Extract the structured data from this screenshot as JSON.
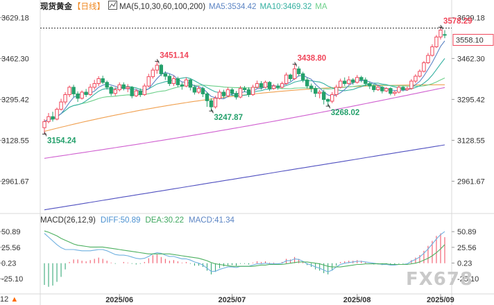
{
  "header": {
    "instrument": "现货黄金",
    "period": "【日线】",
    "indicator_label": "MA(5,10,30,60,100,200)",
    "ma5": "MA5:3534.42",
    "ma10": "MA10:3469.32",
    "ma_more": "MA"
  },
  "macd_header": {
    "label": "MACD(26,12,9)",
    "diff": "DIFF:50.89",
    "dea": "DEA:30.22",
    "macd": "MACD:41.34"
  },
  "watermark": "FX678",
  "corner": {
    "prefix": "12",
    "arrow": "▲"
  },
  "colors": {
    "up": "#f0465a",
    "down": "#24a06b",
    "ma5": "#5b84c4",
    "ma10": "#33b0a0",
    "ma30": "#6dd08a",
    "ma60": "#f0a050",
    "ma100": "#d060d0",
    "ma200": "#5050c0",
    "diff_line": "#6fb0e0",
    "dea_line": "#4cb060",
    "current_price_bg": "#f0465a"
  },
  "chart_data": {
    "type": "candlestick",
    "price_axis": {
      "ticks": [
        "3629.18",
        "3462.30",
        "3295.42",
        "3128.55",
        "2961.67"
      ],
      "range": [
        2830,
        3650
      ]
    },
    "current_price": "3558.10",
    "x_labels": [
      "2025/06",
      "2025/07",
      "2025/08",
      "2025/09"
    ],
    "annotations": [
      {
        "text": "3578.29",
        "type": "high"
      },
      {
        "text": "3451.14",
        "type": "high"
      },
      {
        "text": "3438.80",
        "type": "high"
      },
      {
        "text": "3247.87",
        "type": "low"
      },
      {
        "text": "3268.02",
        "type": "low"
      },
      {
        "text": "3154.24",
        "type": "low"
      }
    ],
    "macd_axis": {
      "ticks": [
        "50.89",
        "25.56",
        "0.23",
        "-25.10"
      ]
    },
    "candles": [
      [
        3180,
        3205,
        3154,
        3215
      ],
      [
        3205,
        3225,
        3198,
        3240
      ],
      [
        3225,
        3215,
        3205,
        3245
      ],
      [
        3215,
        3255,
        3210,
        3262
      ],
      [
        3255,
        3285,
        3250,
        3298
      ],
      [
        3285,
        3315,
        3275,
        3325
      ],
      [
        3315,
        3345,
        3305,
        3352
      ],
      [
        3345,
        3318,
        3305,
        3355
      ],
      [
        3318,
        3300,
        3285,
        3328
      ],
      [
        3300,
        3325,
        3295,
        3332
      ],
      [
        3325,
        3315,
        3305,
        3338
      ],
      [
        3315,
        3345,
        3310,
        3358
      ],
      [
        3345,
        3360,
        3335,
        3375
      ],
      [
        3360,
        3380,
        3350,
        3390
      ],
      [
        3380,
        3365,
        3358,
        3392
      ],
      [
        3365,
        3345,
        3335,
        3372
      ],
      [
        3345,
        3320,
        3310,
        3350
      ],
      [
        3320,
        3335,
        3310,
        3345
      ],
      [
        3335,
        3355,
        3328,
        3365
      ],
      [
        3355,
        3340,
        3332,
        3365
      ],
      [
        3340,
        3345,
        3325,
        3358
      ],
      [
        3345,
        3310,
        3300,
        3350
      ],
      [
        3310,
        3330,
        3305,
        3338
      ],
      [
        3330,
        3315,
        3305,
        3340
      ],
      [
        3315,
        3350,
        3310,
        3360
      ],
      [
        3350,
        3388,
        3345,
        3400
      ],
      [
        3388,
        3415,
        3380,
        3425
      ],
      [
        3415,
        3435,
        3400,
        3451
      ],
      [
        3435,
        3400,
        3390,
        3440
      ],
      [
        3400,
        3390,
        3375,
        3410
      ],
      [
        3390,
        3360,
        3350,
        3400
      ],
      [
        3360,
        3380,
        3350,
        3392
      ],
      [
        3380,
        3355,
        3345,
        3388
      ],
      [
        3355,
        3350,
        3335,
        3365
      ],
      [
        3350,
        3375,
        3345,
        3385
      ],
      [
        3375,
        3345,
        3332,
        3380
      ],
      [
        3345,
        3325,
        3315,
        3355
      ],
      [
        3325,
        3340,
        3318,
        3350
      ],
      [
        3340,
        3318,
        3305,
        3348
      ],
      [
        3318,
        3290,
        3265,
        3325
      ],
      [
        3290,
        3265,
        3248,
        3300
      ],
      [
        3265,
        3300,
        3258,
        3310
      ],
      [
        3300,
        3325,
        3295,
        3335
      ],
      [
        3325,
        3310,
        3300,
        3335
      ],
      [
        3310,
        3335,
        3305,
        3345
      ],
      [
        3335,
        3320,
        3310,
        3342
      ],
      [
        3320,
        3305,
        3295,
        3330
      ],
      [
        3305,
        3340,
        3300,
        3350
      ],
      [
        3340,
        3335,
        3325,
        3350
      ],
      [
        3335,
        3315,
        3305,
        3345
      ],
      [
        3315,
        3345,
        3310,
        3355
      ],
      [
        3345,
        3360,
        3340,
        3372
      ],
      [
        3360,
        3345,
        3335,
        3370
      ],
      [
        3345,
        3365,
        3340,
        3372
      ],
      [
        3365,
        3340,
        3330,
        3370
      ],
      [
        3340,
        3350,
        3335,
        3358
      ],
      [
        3350,
        3345,
        3335,
        3360
      ],
      [
        3345,
        3360,
        3340,
        3368
      ],
      [
        3360,
        3395,
        3355,
        3405
      ],
      [
        3395,
        3380,
        3370,
        3400
      ],
      [
        3380,
        3420,
        3375,
        3439
      ],
      [
        3420,
        3400,
        3390,
        3430
      ],
      [
        3400,
        3375,
        3365,
        3408
      ],
      [
        3375,
        3350,
        3340,
        3385
      ],
      [
        3350,
        3340,
        3325,
        3360
      ],
      [
        3340,
        3320,
        3305,
        3350
      ],
      [
        3320,
        3325,
        3300,
        3335
      ],
      [
        3325,
        3295,
        3275,
        3335
      ],
      [
        3295,
        3288,
        3268,
        3300
      ],
      [
        3288,
        3315,
        3280,
        3325
      ],
      [
        3315,
        3345,
        3305,
        3355
      ],
      [
        3345,
        3370,
        3340,
        3380
      ],
      [
        3370,
        3360,
        3350,
        3385
      ],
      [
        3360,
        3375,
        3355,
        3390
      ],
      [
        3375,
        3365,
        3355,
        3382
      ],
      [
        3365,
        3385,
        3360,
        3395
      ],
      [
        3385,
        3375,
        3365,
        3392
      ],
      [
        3375,
        3360,
        3350,
        3385
      ],
      [
        3360,
        3350,
        3338,
        3368
      ],
      [
        3350,
        3335,
        3325,
        3358
      ],
      [
        3335,
        3345,
        3330,
        3352
      ],
      [
        3345,
        3330,
        3320,
        3350
      ],
      [
        3330,
        3340,
        3325,
        3345
      ],
      [
        3340,
        3320,
        3312,
        3345
      ],
      [
        3320,
        3325,
        3310,
        3332
      ],
      [
        3325,
        3345,
        3320,
        3352
      ],
      [
        3345,
        3335,
        3328,
        3350
      ],
      [
        3335,
        3340,
        3330,
        3348
      ],
      [
        3340,
        3370,
        3335,
        3378
      ],
      [
        3370,
        3390,
        3362,
        3398
      ],
      [
        3390,
        3410,
        3385,
        3418
      ],
      [
        3410,
        3445,
        3405,
        3452
      ],
      [
        3445,
        3475,
        3440,
        3485
      ],
      [
        3475,
        3510,
        3470,
        3520
      ],
      [
        3510,
        3550,
        3505,
        3558
      ],
      [
        3550,
        3578,
        3540,
        3590
      ],
      [
        3560,
        3558,
        3545,
        3578
      ]
    ],
    "macd": {
      "bars": [
        -35,
        -38,
        -36,
        -30,
        -22,
        -10,
        2,
        6,
        6,
        4,
        3,
        5,
        7,
        9,
        7,
        4,
        1,
        -1,
        0,
        2,
        1,
        -1,
        -2,
        -1,
        2,
        8,
        13,
        14,
        10,
        7,
        4,
        5,
        3,
        1,
        2,
        -1,
        -4,
        -4,
        -6,
        -12,
        -18,
        -14,
        -8,
        -5,
        -3,
        -3,
        -4,
        -1,
        -1,
        -2,
        1,
        3,
        2,
        3,
        1,
        1,
        0,
        2,
        7,
        6,
        10,
        7,
        2,
        -3,
        -6,
        -10,
        -12,
        -16,
        -18,
        -12,
        -4,
        2,
        3,
        4,
        4,
        5,
        4,
        2,
        0,
        -2,
        -2,
        -3,
        -2,
        -3,
        -3,
        -1,
        -1,
        0,
        5,
        9,
        13,
        20,
        28,
        36,
        44,
        48,
        42
      ],
      "diff": [
        48,
        42,
        36,
        30,
        25,
        22,
        22,
        22,
        21,
        20,
        20,
        20,
        21,
        22,
        22,
        20,
        17,
        14,
        13,
        13,
        12,
        10,
        8,
        7,
        8,
        11,
        15,
        17,
        16,
        13,
        11,
        11,
        9,
        7,
        7,
        5,
        2,
        0,
        -3,
        -8,
        -13,
        -13,
        -10,
        -8,
        -6,
        -6,
        -7,
        -5,
        -5,
        -5,
        -3,
        -1,
        -1,
        0,
        -1,
        -1,
        -1,
        0,
        4,
        4,
        7,
        6,
        3,
        -1,
        -3,
        -6,
        -8,
        -11,
        -14,
        -11,
        -6,
        -2,
        0,
        1,
        2,
        3,
        3,
        2,
        1,
        0,
        -1,
        -2,
        -2,
        -3,
        -3,
        -2,
        -2,
        -1,
        3,
        6,
        10,
        16,
        23,
        31,
        39,
        46,
        51
      ],
      "dea": [
        52,
        50,
        47,
        44,
        40,
        37,
        34,
        31,
        29,
        28,
        27,
        26,
        26,
        26,
        26,
        25,
        24,
        23,
        22,
        21,
        20,
        19,
        18,
        17,
        16,
        15,
        15,
        15,
        15,
        15,
        15,
        14,
        13,
        12,
        11,
        10,
        9,
        8,
        6,
        4,
        1,
        -1,
        -2,
        -3,
        -4,
        -5,
        -5,
        -5,
        -5,
        -5,
        -5,
        -4,
        -3,
        -3,
        -2,
        -2,
        -2,
        -2,
        -1,
        0,
        1,
        2,
        2,
        2,
        1,
        0,
        -1,
        -3,
        -5,
        -6,
        -6,
        -6,
        -5,
        -4,
        -3,
        -2,
        -2,
        -1,
        -1,
        -1,
        -1,
        -1,
        -1,
        -2,
        -2,
        -2,
        -2,
        -2,
        -1,
        0,
        2,
        5,
        8,
        12,
        17,
        23,
        30
      ]
    }
  }
}
